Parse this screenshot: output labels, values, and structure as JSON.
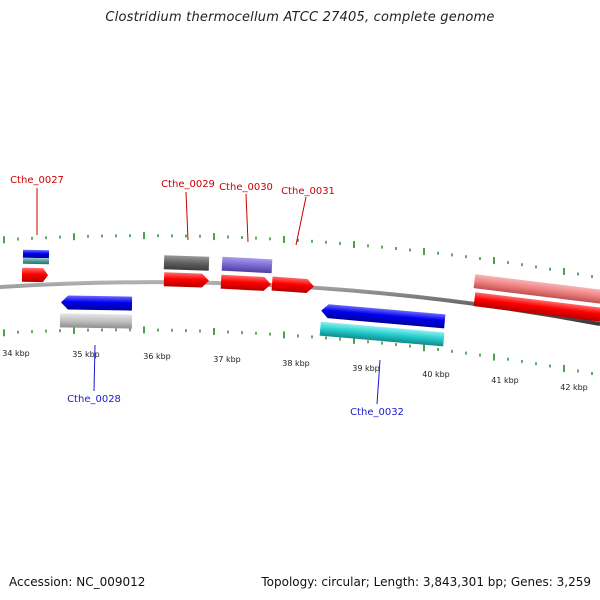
{
  "title": "Clostridium thermocellum ATCC 27405, complete genome",
  "footer": {
    "accession": "Accession: NC_009012",
    "summary": "Topology: circular; Length: 3,843,301 bp; Genes: 3,259"
  },
  "scale_labels": [
    "34 kbp",
    "35 kbp",
    "36 kbp",
    "37 kbp",
    "38 kbp",
    "39 kbp",
    "40 kbp",
    "41 kbp",
    "42 kbp"
  ],
  "colors": {
    "forward_label": "#cc0000",
    "reverse_label": "#1a1acc",
    "backbone": "#707070",
    "tick": "#1f8a1f",
    "forward_cds": "#ff0000",
    "reverse_cds": "#0000ee",
    "trna": "#606060",
    "rrna": "#7c6ad0",
    "pseudo": "#c0c0c0",
    "cyan_feature": "#22cccc",
    "pink_feature": "#ee8080",
    "teal_feature": "#4b9a9a"
  },
  "gene_labels": [
    {
      "name": "Cthe_0027",
      "strand": "forward"
    },
    {
      "name": "Cthe_0029",
      "strand": "forward"
    },
    {
      "name": "Cthe_0030",
      "strand": "forward"
    },
    {
      "name": "Cthe_0031",
      "strand": "forward"
    },
    {
      "name": "Cthe_0028",
      "strand": "reverse"
    },
    {
      "name": "Cthe_0032",
      "strand": "reverse"
    }
  ]
}
